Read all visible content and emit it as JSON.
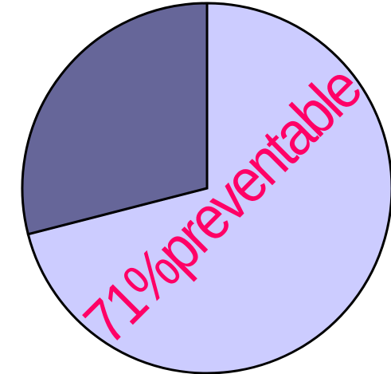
{
  "chart_data": {
    "type": "pie",
    "values": [
      71,
      29
    ],
    "value_labels": [
      "71%preventable",
      null
    ],
    "colors": [
      "#ccccff",
      "#666699"
    ],
    "label_color": "#ff0066"
  }
}
